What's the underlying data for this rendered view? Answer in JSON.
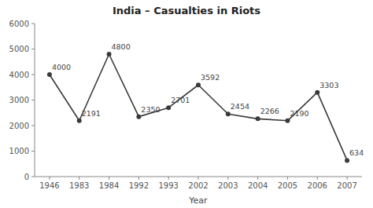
{
  "chart_data": {
    "type": "line",
    "title": "India – Casualties in Riots",
    "xlabel": "Year",
    "categories": [
      "1946",
      "1983",
      "1984",
      "1992",
      "1993",
      "2002",
      "2003",
      "2004",
      "2005",
      "2006",
      "2007"
    ],
    "values": [
      4000,
      2191,
      4800,
      2350,
      2701,
      3592,
      2454,
      2266,
      2190,
      3303,
      634
    ],
    "color": "#3a3a3a",
    "marker": "circle",
    "ylim": [
      0,
      6000
    ],
    "yticks": [
      0,
      1000,
      2000,
      3000,
      4000,
      5000,
      6000
    ],
    "grid": false,
    "data_labels": true
  }
}
